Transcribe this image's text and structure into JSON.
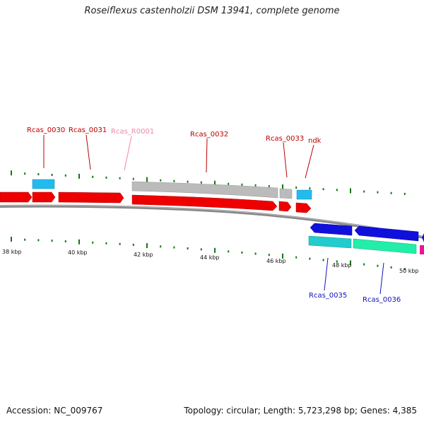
{
  "title": "Roseiflexus castenholzii DSM 13941, complete genome",
  "footer": {
    "accession": "Accession: NC_009767",
    "topology": "Topology: circular; Length: 5,723,298 bp; Genes: 4,385"
  },
  "colors": {
    "cds_forward": "#ee0000",
    "cds_gray": "#bbbbbb",
    "small_forward": "#22bbee",
    "cds_reverse": "#1010dd",
    "reverse_cyan": "#22cccc",
    "reverse_green": "#22eeaa",
    "magenta": "#ee1199",
    "tick": "#117711",
    "label_forward": "#bb0000",
    "label_rna": "#ee88aa",
    "label_reverse": "#1111bb"
  },
  "scale_labels": [
    "38 kbp",
    "40 kbp",
    "42 kbp",
    "44 kbp",
    "46 kbp",
    "48 kbp",
    "50 kbp"
  ],
  "gene_labels": [
    {
      "id": "Rcas_0030",
      "text": "Rcas_0030",
      "type": "forward"
    },
    {
      "id": "Rcas_0031",
      "text": "Rcas_0031",
      "type": "forward"
    },
    {
      "id": "Rcas_R0001",
      "text": "Rcas_R0001",
      "type": "rna"
    },
    {
      "id": "Rcas_0032",
      "text": "Rcas_0032",
      "type": "forward"
    },
    {
      "id": "Rcas_0033",
      "text": "Rcas_0033",
      "type": "forward"
    },
    {
      "id": "ndk",
      "text": "ndk",
      "type": "forward"
    },
    {
      "id": "Rcas_0035",
      "text": "Rcas_0035",
      "type": "reverse"
    },
    {
      "id": "Rcas_0036",
      "text": "Rcas_0036",
      "type": "reverse"
    }
  ]
}
